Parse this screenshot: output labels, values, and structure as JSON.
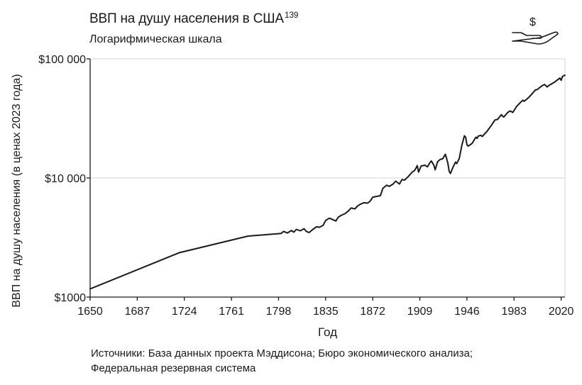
{
  "title": "ВВП на душу населения в США",
  "title_footnote": "139",
  "subtitle": "Логарифмическая шкала",
  "source_lines": [
    "Источники: База данных проекта Мэддисона; Бюро экономического анализа;",
    "Федеральная резервная система"
  ],
  "icon": "dollar-hand-icon",
  "colors": {
    "line": "#1a1a1a",
    "grid": "#d4d4d4",
    "axis": "#1a1a1a"
  },
  "chart_data": {
    "type": "line",
    "title": "ВВП на душу населения в США",
    "subtitle": "Логарифмическая шкала",
    "xlabel": "Год",
    "ylabel": "ВВП на душу населения (в ценах 2023 года)",
    "xlim": [
      1650,
      2023
    ],
    "ylim": [
      1000,
      100000
    ],
    "yscale": "log",
    "grid": "horizontal",
    "x_ticks": [
      1650,
      1687,
      1724,
      1761,
      1798,
      1835,
      1872,
      1909,
      1946,
      1983,
      2020
    ],
    "y_ticks": [
      {
        "value": 1000,
        "label": "$1000"
      },
      {
        "value": 10000,
        "label": "$10 000"
      },
      {
        "value": 100000,
        "label": "$100 000"
      }
    ],
    "series": [
      {
        "x": [
          1650,
          1720,
          1774,
          1800,
          1802,
          1805,
          1808,
          1810,
          1812,
          1815,
          1818,
          1820,
          1822,
          1825,
          1828,
          1830,
          1833,
          1835,
          1838,
          1840,
          1843,
          1845,
          1848,
          1850,
          1853,
          1855,
          1858,
          1860,
          1862,
          1865,
          1868,
          1870,
          1872,
          1875,
          1878,
          1880,
          1883,
          1885,
          1888,
          1890,
          1893,
          1895,
          1897,
          1900,
          1903,
          1905,
          1907,
          1908,
          1910,
          1913,
          1915,
          1917,
          1918,
          1920,
          1921,
          1923,
          1925,
          1927,
          1929,
          1930,
          1931,
          1932,
          1933,
          1935,
          1937,
          1938,
          1940,
          1942,
          1944,
          1945,
          1946,
          1947,
          1950,
          1953,
          1954,
          1955,
          1957,
          1958,
          1960,
          1962,
          1965,
          1968,
          1970,
          1973,
          1974,
          1975,
          1978,
          1980,
          1982,
          1985,
          1988,
          1990,
          1991,
          1995,
          2000,
          2001,
          2005,
          2007,
          2009,
          2010,
          2015,
          2019,
          2020,
          2021,
          2023
        ],
        "values": [
          1170,
          2360,
          3250,
          3420,
          3560,
          3450,
          3620,
          3510,
          3700,
          3600,
          3750,
          3550,
          3480,
          3700,
          3900,
          3850,
          4000,
          4400,
          4600,
          4500,
          4350,
          4700,
          4900,
          5000,
          5300,
          5600,
          5500,
          5800,
          6000,
          6200,
          6150,
          6400,
          6900,
          7000,
          7100,
          8200,
          8700,
          8500,
          8900,
          9400,
          8900,
          9700,
          9600,
          10300,
          11200,
          11600,
          12700,
          11200,
          12600,
          12800,
          12400,
          13500,
          13900,
          12800,
          11700,
          13700,
          14300,
          14500,
          15800,
          14600,
          13300,
          11400,
          10900,
          12300,
          13600,
          13200,
          14600,
          18800,
          22600,
          22000,
          19000,
          18500,
          19500,
          22000,
          21500,
          22500,
          22800,
          22300,
          23500,
          24800,
          27500,
          30700,
          31000,
          34000,
          33000,
          32500,
          35500,
          36500,
          35500,
          39800,
          43000,
          45000,
          44000,
          48000,
          55000,
          55000,
          59500,
          61000,
          58000,
          59500,
          64000,
          69000,
          66000,
          71000,
          73000
        ]
      }
    ]
  }
}
